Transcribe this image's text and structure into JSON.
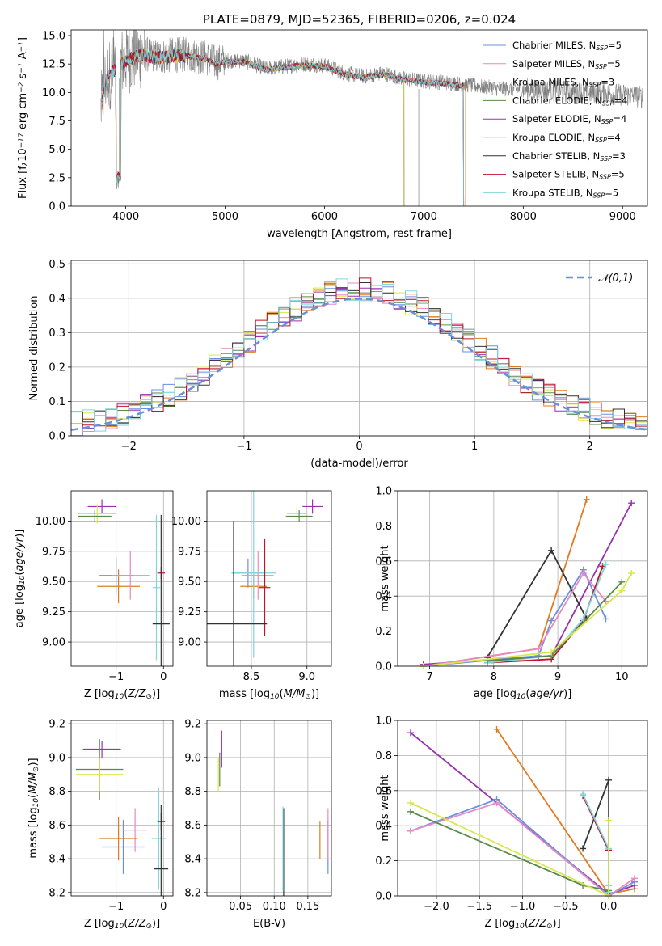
{
  "chart_data": [
    {
      "type": "line",
      "id": "spectrum",
      "title": "PLATE=0879, MJD=52365, FIBERID=0206, z=0.024",
      "xlabel": "wavelength [Angstrom, rest frame]",
      "ylabel": "Flux [f$_\\lambda$10$^{-17}$ erg cm$^{-2}$ s$^{-1}$ A$^{-1}$]",
      "xlim": [
        3450,
        9250
      ],
      "ylim": [
        0,
        15.5
      ],
      "xticks": [
        "4000",
        "5000",
        "6000",
        "7000",
        "8000",
        "9000"
      ],
      "yticks": [
        "0.0",
        "2.5",
        "5.0",
        "7.5",
        "10.0",
        "12.5",
        "15.0"
      ],
      "grid": false,
      "legend": "top-right",
      "data_color": "#808080",
      "continuum": {
        "x": [
          3750,
          3800,
          3900,
          4000,
          4100,
          4200,
          4300,
          4400,
          4500,
          4600,
          4700,
          4800,
          4900,
          5000,
          5200,
          5400,
          5600,
          5800,
          6000,
          6200,
          6400,
          6600,
          6800,
          7000,
          7200,
          7400,
          7600,
          7800,
          8000,
          8200,
          8400,
          8600,
          8800,
          9000,
          9200
        ],
        "y": [
          8.5,
          11.2,
          12.2,
          12.9,
          13.3,
          13.4,
          13.1,
          13.2,
          13.3,
          13.3,
          13.2,
          13.1,
          12.6,
          12.8,
          12.8,
          12.1,
          12.3,
          12.5,
          12.4,
          11.7,
          11.4,
          11.7,
          11.2,
          11.0,
          10.9,
          10.7,
          10.5,
          10.3,
          10.3,
          10.2,
          10.1,
          10.0,
          9.9,
          9.8,
          9.6
        ]
      },
      "series": [
        {
          "name": "Chabrier MILES, N$_{SSP}$=5",
          "color": "#6b8fe0",
          "xmin": 3760,
          "xmax": 7400
        },
        {
          "name": "Salpeter MILES, N$_{SSP}$=5",
          "color": "#e68ac0",
          "xmin": 3760,
          "xmax": 7400
        },
        {
          "name": "Kroupa MILES, N$_{SSP}$=3",
          "color": "#e07b20",
          "xmin": 3760,
          "xmax": 7420
        },
        {
          "name": "Chabrier ELODIE, N$_{SSP}$=4",
          "color": "#5a8a4a",
          "xmin": 3900,
          "xmax": 6800
        },
        {
          "name": "Salpeter ELODIE, N$_{SSP}$=4",
          "color": "#9a30b0",
          "xmin": 3900,
          "xmax": 6800
        },
        {
          "name": "Kroupa ELODIE, N$_{SSP}$=4",
          "color": "#d8e84a",
          "xmin": 3900,
          "xmax": 6800
        },
        {
          "name": "Chabrier STELIB, N$_{SSP}$=3",
          "color": "#333333",
          "xmin": 3760,
          "xmax": 7400
        },
        {
          "name": "Salpeter STELIB, N$_{SSP}$=5",
          "color": "#c0102a",
          "xmin": 3760,
          "xmax": 7400
        },
        {
          "name": "Kroupa STELIB, N$_{SSP}$=5",
          "color": "#7fd6dc",
          "xmin": 3760,
          "xmax": 7400
        }
      ]
    },
    {
      "type": "line",
      "id": "residuals",
      "xlabel": "(data-model)/error",
      "ylabel": "Normed distribution",
      "xlim": [
        -2.5,
        2.5
      ],
      "ylim": [
        0,
        0.51
      ],
      "xticks": [
        "−2",
        "−1",
        "0",
        "1",
        "2"
      ],
      "yticks": [
        "0.0",
        "0.1",
        "0.2",
        "0.3",
        "0.4",
        "0.5"
      ],
      "grid": true,
      "legend": "top-right",
      "gaussian": {
        "name": "$\\mathcal{N}(0,1)$",
        "color": "#6b8fd6",
        "mean": 0,
        "sigma": 1
      },
      "bin_width": 0.1,
      "series_colors": [
        "#6b8fe0",
        "#e68ac0",
        "#e07b20",
        "#5a8a4a",
        "#9a30b0",
        "#d8e84a",
        "#333333",
        "#c0102a",
        "#7fd6dc"
      ]
    },
    {
      "type": "scatter",
      "id": "age-vs-Z",
      "xlabel": "Z [log$_{10}$($Z/Z_\\odot$)]",
      "ylabel": "age  [log$_{10}$($age/yr$)]",
      "xlim": [
        -1.95,
        0.2
      ],
      "ylim": [
        8.8,
        10.25
      ],
      "xticks": [
        "−1",
        "0"
      ],
      "yticks": [
        "9.00",
        "9.25",
        "9.50",
        "9.75",
        "10.00"
      ],
      "grid": true,
      "points": [
        {
          "color": "#9a30b0",
          "x": -1.3,
          "xerr": 0.3,
          "y": 10.12,
          "yerr": 0.06
        },
        {
          "color": "#d8e84a",
          "x": -1.4,
          "xerr": 0.4,
          "y": 10.06,
          "yerr": 0.08
        },
        {
          "color": "#5a8a4a",
          "x": -1.45,
          "xerr": 0.35,
          "y": 10.04,
          "yerr": 0.05
        },
        {
          "color": "#6b8fe0",
          "x": -1.0,
          "xerr": 0.35,
          "y": 9.55,
          "yerr": 0.15
        },
        {
          "color": "#e07b20",
          "x": -0.95,
          "xerr": 0.45,
          "y": 9.46,
          "yerr": 0.14
        },
        {
          "color": "#e68ac0",
          "x": -0.7,
          "xerr": 0.4,
          "y": 9.55,
          "yerr": 0.2
        },
        {
          "color": "#7fd6dc",
          "x": -0.15,
          "xerr": 0.08,
          "y": 9.45,
          "yerr": 0.6
        },
        {
          "color": "#c0102a",
          "x": -0.05,
          "xerr": 0.08,
          "y": 9.57,
          "yerr": 0.05
        },
        {
          "color": "#333333",
          "x": -0.05,
          "xerr": 0.18,
          "y": 9.15,
          "yerr": 0.9
        }
      ]
    },
    {
      "type": "scatter",
      "id": "age-vs-mass",
      "xlabel": "mass [log$_{10}$($M/M_\\odot$)]",
      "ylabel": "",
      "xlim": [
        8.1,
        9.22
      ],
      "ylim": [
        8.8,
        10.25
      ],
      "xticks": [
        "8.5",
        "9.0"
      ],
      "yticks": [
        "9.00",
        "9.25",
        "9.50",
        "9.75",
        "10.00"
      ],
      "grid": true,
      "points": [
        {
          "color": "#9a30b0",
          "x": 9.05,
          "xerr": 0.09,
          "y": 10.12,
          "yerr": 0.06
        },
        {
          "color": "#d8e84a",
          "x": 8.91,
          "xerr": 0.09,
          "y": 10.06,
          "yerr": 0.06
        },
        {
          "color": "#5a8a4a",
          "x": 8.93,
          "xerr": 0.12,
          "y": 10.04,
          "yerr": 0.05
        },
        {
          "color": "#6b8fe0",
          "x": 8.47,
          "xerr": 0.14,
          "y": 9.57,
          "yerr": 0.12
        },
        {
          "color": "#e07b20",
          "x": 8.52,
          "xerr": 0.12,
          "y": 9.46,
          "yerr": 0.1
        },
        {
          "color": "#e68ac0",
          "x": 8.56,
          "xerr": 0.14,
          "y": 9.55,
          "yerr": 0.2
        },
        {
          "color": "#7fd6dc",
          "x": 8.52,
          "xerr": 0.2,
          "y": 9.57,
          "yerr": 0.7
        },
        {
          "color": "#c0102a",
          "x": 8.62,
          "xerr": 0.05,
          "y": 9.45,
          "yerr": 0.4
        },
        {
          "color": "#333333",
          "x": 8.34,
          "xerr": 0.3,
          "y": 9.15,
          "yerr": 0.85
        }
      ]
    },
    {
      "type": "line",
      "id": "weight-vs-age",
      "xlabel": "age  [log$_{10}$($age/yr$)]",
      "ylabel": "mass weight",
      "xlim": [
        6.5,
        10.4
      ],
      "ylim": [
        0,
        1.0
      ],
      "xticks": [
        "7",
        "8",
        "9",
        "10"
      ],
      "yticks": [
        "0.0",
        "0.2",
        "0.4",
        "0.6",
        "0.8",
        "1.0"
      ],
      "grid": true,
      "series": [
        {
          "color": "#e07b20",
          "x": [
            6.9,
            8.7,
            9.45
          ],
          "y": [
            0.0,
            0.1,
            0.95
          ]
        },
        {
          "color": "#9a30b0",
          "x": [
            6.9,
            8.9,
            10.15
          ],
          "y": [
            0.01,
            0.06,
            0.93
          ]
        },
        {
          "color": "#333333",
          "x": [
            7.9,
            8.9,
            9.45
          ],
          "y": [
            0.05,
            0.66,
            0.27
          ]
        },
        {
          "color": "#6b8fe0",
          "x": [
            6.9,
            8.7,
            8.9,
            9.4,
            9.75
          ],
          "y": [
            0.0,
            0.06,
            0.26,
            0.55,
            0.27
          ]
        },
        {
          "color": "#e68ac0",
          "x": [
            6.9,
            8.7,
            9.4,
            9.75
          ],
          "y": [
            0.0,
            0.1,
            0.53,
            0.37
          ]
        },
        {
          "color": "#c0102a",
          "x": [
            7.9,
            8.9,
            9.4,
            9.7
          ],
          "y": [
            0.02,
            0.04,
            0.26,
            0.57
          ]
        },
        {
          "color": "#7fd6dc",
          "x": [
            7.9,
            8.9,
            9.4,
            9.75
          ],
          "y": [
            0.02,
            0.06,
            0.27,
            0.58
          ]
        },
        {
          "color": "#5a8a4a",
          "x": [
            7.9,
            8.9,
            10.0
          ],
          "y": [
            0.03,
            0.06,
            0.48
          ]
        },
        {
          "color": "#d8e84a",
          "x": [
            6.9,
            8.9,
            10.0,
            10.15
          ],
          "y": [
            0.0,
            0.08,
            0.43,
            0.53
          ]
        }
      ]
    },
    {
      "type": "scatter",
      "id": "mass-vs-Z",
      "xlabel": "Z [log$_{10}$($Z/Z_\\odot$)]",
      "ylabel": "mass [log$_{10}$($M/M_\\odot$)]",
      "xlim": [
        -1.95,
        0.2
      ],
      "ylim": [
        8.18,
        9.22
      ],
      "xticks": [
        "−1",
        "0"
      ],
      "yticks": [
        "8.2",
        "8.4",
        "8.6",
        "8.8",
        "9.0",
        "9.2"
      ],
      "grid": true,
      "points": [
        {
          "color": "#9a30b0",
          "x": -1.3,
          "xerr": 0.4,
          "y": 9.05,
          "yerr": 0.05
        },
        {
          "color": "#5a8a4a",
          "x": -1.35,
          "xerr": 0.5,
          "y": 8.93,
          "yerr": 0.18
        },
        {
          "color": "#d8e84a",
          "x": -1.35,
          "xerr": 0.5,
          "y": 8.9,
          "yerr": 0.1
        },
        {
          "color": "#e68ac0",
          "x": -0.6,
          "xerr": 0.25,
          "y": 8.57,
          "yerr": 0.13
        },
        {
          "color": "#e07b20",
          "x": -0.95,
          "xerr": 0.4,
          "y": 8.52,
          "yerr": 0.13
        },
        {
          "color": "#6b8fe0",
          "x": -0.85,
          "xerr": 0.45,
          "y": 8.47,
          "yerr": 0.16
        },
        {
          "color": "#7fd6dc",
          "x": -0.1,
          "xerr": 0.15,
          "y": 8.52,
          "yerr": 0.3
        },
        {
          "color": "#c0102a",
          "x": -0.05,
          "xerr": 0.08,
          "y": 8.62,
          "yerr": 0.05
        },
        {
          "color": "#333333",
          "x": -0.05,
          "xerr": 0.15,
          "y": 8.34,
          "yerr": 0.38
        }
      ]
    },
    {
      "type": "scatter",
      "id": "mass-vs-EBV",
      "xlabel": "E(B-V)",
      "ylabel": "",
      "xlim": [
        0.0,
        0.185
      ],
      "ylim": [
        8.18,
        9.22
      ],
      "xticks": [
        "0.05",
        "0.10",
        "0.15"
      ],
      "yticks": [
        "8.2",
        "8.4",
        "8.6",
        "8.8",
        "9.0",
        "9.2"
      ],
      "grid": true,
      "points": [
        {
          "color": "#9a30b0",
          "x": 0.022,
          "y": 9.05,
          "yerr": 0.11
        },
        {
          "color": "#5a8a4a",
          "x": 0.019,
          "y": 8.93,
          "yerr": 0.1
        },
        {
          "color": "#d8e84a",
          "x": 0.017,
          "y": 8.9,
          "yerr": 0.1
        },
        {
          "color": "#333333",
          "x": 0.114,
          "y": 8.44,
          "yerr": 0.26
        },
        {
          "color": "#7fd6dc",
          "x": 0.113,
          "y": 8.46,
          "yerr": 0.25
        },
        {
          "color": "#e07b20",
          "x": 0.168,
          "y": 8.51,
          "yerr": 0.11
        },
        {
          "color": "#6b8fe0",
          "x": 0.18,
          "y": 8.47,
          "yerr": 0.16
        },
        {
          "color": "#e68ac0",
          "x": 0.18,
          "y": 8.55,
          "yerr": 0.15
        }
      ]
    },
    {
      "type": "line",
      "id": "weight-vs-Z",
      "xlabel": "Z [log$_{10}$($Z/Z_\\odot$)]",
      "ylabel": "mass weight",
      "xlim": [
        -2.45,
        0.45
      ],
      "ylim": [
        0,
        1.0
      ],
      "xticks": [
        "−2.0",
        "−1.5",
        "−1.0",
        "−0.5",
        "0.0"
      ],
      "yticks": [
        "0.0",
        "0.2",
        "0.4",
        "0.6",
        "0.8",
        "1.0"
      ],
      "grid": true,
      "series": [
        {
          "color": "#e07b20",
          "x": [
            -1.3,
            0.0,
            0.3
          ],
          "y": [
            0.95,
            0.01,
            0.04
          ]
        },
        {
          "color": "#9a30b0",
          "x": [
            -2.3,
            0.0,
            0.3
          ],
          "y": [
            0.93,
            0.01,
            0.06
          ]
        },
        {
          "color": "#333333",
          "x": [
            -0.3,
            0.0,
            0.0,
            0.0
          ],
          "y": [
            0.27,
            0.66,
            0.26,
            0.06
          ]
        },
        {
          "color": "#6b8fe0",
          "x": [
            -2.3,
            -1.3,
            0.0,
            0.3
          ],
          "y": [
            0.37,
            0.55,
            0.0,
            0.08
          ]
        },
        {
          "color": "#e68ac0",
          "x": [
            -2.3,
            -1.3,
            0.0,
            0.3
          ],
          "y": [
            0.37,
            0.53,
            0.0,
            0.1
          ]
        },
        {
          "color": "#c0102a",
          "x": [
            -0.3,
            0.0,
            0.0
          ],
          "y": [
            0.57,
            0.26,
            0.02
          ]
        },
        {
          "color": "#7fd6dc",
          "x": [
            -0.3,
            0.0,
            0.0,
            0.0
          ],
          "y": [
            0.58,
            0.27,
            0.06,
            0.02
          ]
        },
        {
          "color": "#5a8a4a",
          "x": [
            -2.3,
            -0.3,
            0.0
          ],
          "y": [
            0.48,
            0.06,
            0.03
          ]
        },
        {
          "color": "#d8e84a",
          "x": [
            -2.3,
            0.0,
            0.0
          ],
          "y": [
            0.53,
            0.0,
            0.43
          ]
        }
      ]
    }
  ]
}
